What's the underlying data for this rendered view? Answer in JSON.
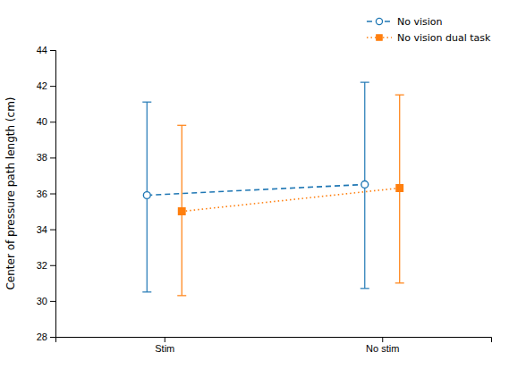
{
  "chart_data": {
    "type": "line",
    "ylabel": "Center of pressure path length (cm)",
    "categories": [
      "Stim",
      "No stim"
    ],
    "series": [
      {
        "name": "No vision",
        "marker": "circle",
        "line_style": "dashed",
        "values": [
          35.9,
          36.5
        ],
        "upper": [
          41.1,
          42.2
        ],
        "lower": [
          30.5,
          30.7
        ]
      },
      {
        "name": "No vision dual task",
        "marker": "square",
        "line_style": "dotted",
        "values": [
          35.0,
          36.3
        ],
        "upper": [
          39.8,
          41.5
        ],
        "lower": [
          30.3,
          31.0
        ]
      }
    ],
    "ylim": [
      28,
      44
    ],
    "yticks": [
      28,
      30,
      32,
      34,
      36,
      38,
      40,
      42,
      44
    ],
    "grid": false,
    "legend": "upper right"
  }
}
